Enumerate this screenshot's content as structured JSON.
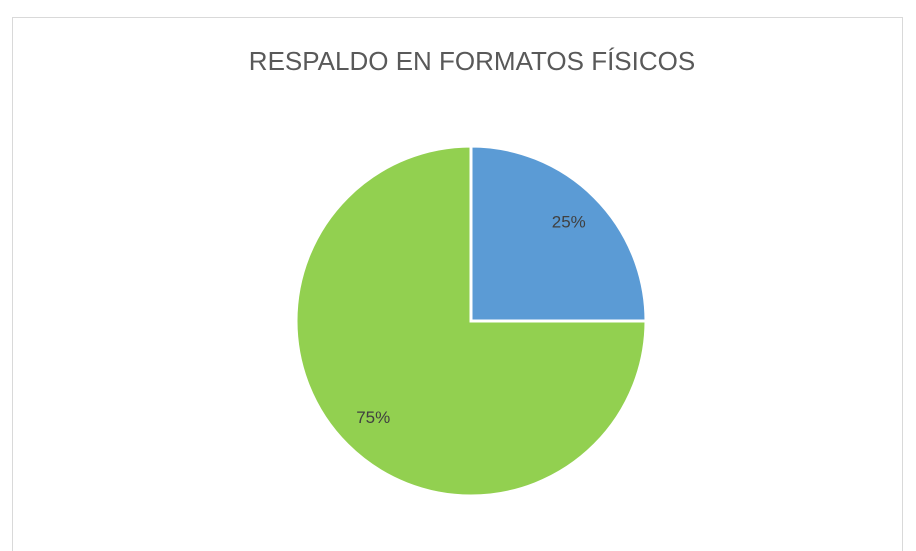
{
  "chart_data": {
    "type": "pie",
    "title": "RESPALDO EN FORMATOS FÍSICOS",
    "values": [
      25,
      75
    ],
    "value_labels": [
      "25%",
      "75%"
    ],
    "colors": [
      "#5b9bd5",
      "#92d050"
    ]
  }
}
